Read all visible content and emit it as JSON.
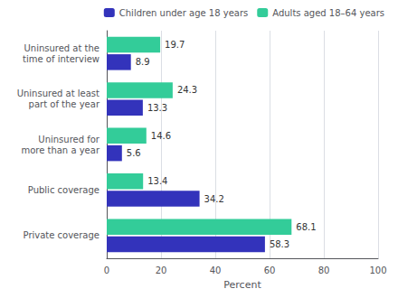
{
  "chart_data": {
    "type": "bar",
    "orientation": "horizontal",
    "categories": [
      "Private coverage",
      "Public coverage",
      "Uninsured for\nmore than a year",
      "Uninsured at least\npart of the year",
      "Uninsured at the\ntime of interview"
    ],
    "series": [
      {
        "name": "Children under age 18 years",
        "color": "#3333bb",
        "values": [
          58.3,
          34.2,
          5.6,
          13.3,
          8.9
        ]
      },
      {
        "name": "Adults aged 18–64 years",
        "color": "#33cc99",
        "values": [
          68.1,
          13.4,
          14.6,
          24.3,
          19.7
        ]
      }
    ],
    "xlabel": "Percent",
    "xlim": [
      0,
      100
    ],
    "xticks": [
      0,
      20,
      40,
      60,
      80,
      100
    ],
    "grid": true,
    "legend": "upper right",
    "data_labels": true
  }
}
